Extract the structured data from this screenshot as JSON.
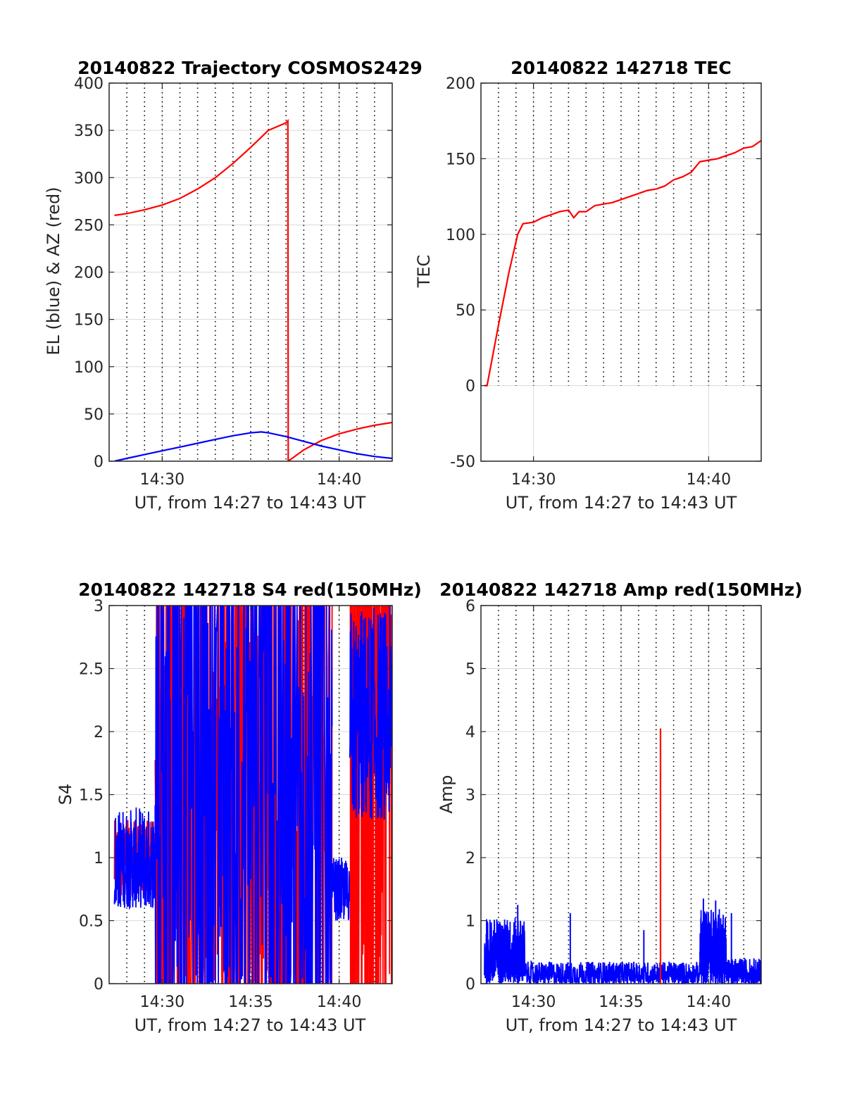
{
  "figure_colors": {
    "el": "#0000ff",
    "az": "#ff0000",
    "grid": "#d9d9d9",
    "minor_grid": "#000000",
    "axes": "#262626"
  },
  "chart_data": [
    {
      "type": "line",
      "title": "20140822 Trajectory COSMOS2429",
      "xlabel": "UT, from 14:27 to 14:43 UT",
      "ylabel": "EL (blue) & AZ (red)",
      "xlim": [
        27,
        43
      ],
      "ylim": [
        0,
        400
      ],
      "x_ticks": [
        30,
        40
      ],
      "x_tick_labels": [
        "14:30",
        "14:40"
      ],
      "y_ticks": [
        0,
        50,
        100,
        150,
        200,
        250,
        300,
        350,
        400
      ],
      "y_tick_labels": [
        "0",
        "50",
        "100",
        "150",
        "200",
        "250",
        "300",
        "350",
        "400"
      ],
      "minor_x_grid": [
        28,
        29,
        30,
        31,
        32,
        33,
        34,
        35,
        36,
        37,
        38,
        39,
        40,
        41,
        42
      ],
      "grid": true,
      "series": [
        {
          "color": "#ff0000",
          "x": [
            27.3,
            28,
            29,
            30,
            31,
            32,
            33,
            34,
            35,
            36,
            37,
            37.1,
            37.12,
            38,
            39,
            40,
            41,
            42,
            43
          ],
          "y": [
            260,
            262,
            266,
            271,
            278,
            288,
            300,
            315,
            332,
            350,
            358,
            360,
            0,
            12,
            22,
            29,
            34,
            38,
            41
          ]
        },
        {
          "color": "#0000ff",
          "x": [
            27.3,
            28,
            29,
            30,
            31,
            32,
            33,
            34,
            35,
            35.6,
            36,
            37,
            38,
            39,
            40,
            41,
            42,
            43
          ],
          "y": [
            0,
            3,
            7,
            11,
            15,
            19,
            23,
            27,
            30,
            31,
            30,
            26,
            21,
            16,
            12,
            8,
            5,
            3
          ]
        }
      ]
    },
    {
      "type": "line",
      "title": "20140822 142718 TEC",
      "xlabel": "UT, from 14:27 to 14:43 UT",
      "ylabel": "TEC",
      "xlim": [
        27,
        43
      ],
      "ylim": [
        -50,
        200
      ],
      "x_ticks": [
        30,
        40
      ],
      "x_tick_labels": [
        "14:30",
        "14:40"
      ],
      "y_ticks": [
        -50,
        0,
        50,
        100,
        150,
        200
      ],
      "y_tick_labels": [
        "-50",
        "0",
        "50",
        "100",
        "150",
        "200"
      ],
      "minor_x_grid": [
        28,
        29,
        30,
        31,
        32,
        33,
        34,
        35,
        36,
        37,
        38,
        39,
        40,
        41,
        42
      ],
      "minor_y_range": [
        0,
        200
      ],
      "grid": true,
      "series": [
        {
          "color": "#ff0000",
          "x": [
            27.2,
            27.35,
            28,
            28.6,
            29.1,
            29.4,
            30,
            30.5,
            31,
            31.5,
            32,
            32.3,
            32.6,
            33,
            33.5,
            34,
            34.5,
            35,
            35.5,
            36,
            36.5,
            37,
            37.5,
            38,
            38.5,
            39,
            39.5,
            40,
            40.5,
            41,
            41.5,
            42,
            42.5,
            43
          ],
          "y": [
            0,
            0,
            40,
            75,
            100,
            107,
            108,
            111,
            113,
            115,
            116,
            111,
            115,
            115,
            119,
            120,
            121,
            123,
            125,
            127,
            129,
            130,
            132,
            136,
            138,
            141,
            148,
            149,
            150,
            152,
            154,
            157,
            158,
            162
          ]
        }
      ]
    },
    {
      "type": "line",
      "title": "20140822 142718 S4 red(150MHz)",
      "xlabel": "UT, from 14:27 to 14:43 UT",
      "ylabel": "S4",
      "xlim": [
        27,
        43
      ],
      "ylim": [
        0,
        3
      ],
      "x_ticks": [
        30,
        35,
        40
      ],
      "x_tick_labels": [
        "14:30",
        "14:35",
        "14:40"
      ],
      "y_ticks": [
        0,
        0.5,
        1,
        1.5,
        2,
        2.5,
        3
      ],
      "y_tick_labels": [
        "0",
        "0.5",
        "1",
        "1.5",
        "2",
        "2.5",
        "3"
      ],
      "minor_x_grid": [
        28,
        29,
        30,
        31,
        32,
        33,
        34,
        35,
        36,
        37,
        38,
        39,
        40,
        41,
        42
      ],
      "grid": true,
      "noise_segments": [
        {
          "color": "#ff0000",
          "x_range": [
            27.3,
            29.6
          ],
          "y_range": [
            0.7,
            1.3
          ],
          "n": 180
        },
        {
          "color": "#0000ff",
          "x_range": [
            27.3,
            29.6
          ],
          "y_range": [
            0.6,
            1.4
          ],
          "n": 180
        },
        {
          "color": "#ff0000",
          "x_range": [
            29.6,
            39.6
          ],
          "y_range": [
            0,
            3
          ],
          "n": 520
        },
        {
          "color": "#0000ff",
          "x_range": [
            29.6,
            39.6
          ],
          "y_range": [
            0,
            3
          ],
          "n": 420
        },
        {
          "color": "#0000ff",
          "x_range": [
            39.6,
            40.6
          ],
          "y_range": [
            0.5,
            1.0
          ],
          "n": 80
        },
        {
          "color": "#ff0000",
          "x_range": [
            40.6,
            43
          ],
          "y_range": [
            0,
            3
          ],
          "n": 160
        },
        {
          "color": "#0000ff",
          "x_range": [
            40.6,
            43
          ],
          "y_range": [
            1.3,
            3
          ],
          "n": 160
        }
      ]
    },
    {
      "type": "line",
      "title": "20140822 142718 Amp red(150MHz)",
      "xlabel": "UT, from 14:27 to 14:43 UT",
      "ylabel": "Amp",
      "xlim": [
        27,
        43
      ],
      "ylim": [
        0,
        6
      ],
      "x_ticks": [
        30,
        35,
        40
      ],
      "x_tick_labels": [
        "14:30",
        "14:35",
        "14:40"
      ],
      "y_ticks": [
        0,
        1,
        2,
        3,
        4,
        5,
        6
      ],
      "y_tick_labels": [
        "0",
        "1",
        "2",
        "3",
        "4",
        "5",
        "6"
      ],
      "minor_x_grid": [
        28,
        29,
        30,
        31,
        32,
        33,
        34,
        35,
        36,
        37,
        38,
        39,
        40,
        41,
        42
      ],
      "grid": true,
      "spike": {
        "color": "#ff0000",
        "x": 37.25,
        "y": 4.05
      },
      "noise_segments": [
        {
          "color": "#0000ff",
          "x_range": [
            27.2,
            29.5
          ],
          "y_range": [
            0.0,
            1.05
          ],
          "n": 300
        },
        {
          "color": "#0000ff",
          "x_range": [
            29.5,
            39.5
          ],
          "y_range": [
            0.0,
            0.35
          ],
          "n": 700
        },
        {
          "color": "#0000ff",
          "x_range": [
            39.5,
            41.0
          ],
          "y_range": [
            0.0,
            1.2
          ],
          "n": 200
        },
        {
          "color": "#0000ff",
          "x_range": [
            41.0,
            43.0
          ],
          "y_range": [
            0.0,
            0.4
          ],
          "n": 220
        }
      ],
      "peaks": [
        {
          "color": "#0000ff",
          "x": 29.1,
          "y": 1.25
        },
        {
          "color": "#0000ff",
          "x": 32.1,
          "y": 1.12
        },
        {
          "color": "#0000ff",
          "x": 36.3,
          "y": 0.85
        },
        {
          "color": "#0000ff",
          "x": 39.7,
          "y": 1.35
        },
        {
          "color": "#0000ff",
          "x": 40.4,
          "y": 1.32
        },
        {
          "color": "#0000ff",
          "x": 41.3,
          "y": 1.12
        }
      ]
    }
  ]
}
